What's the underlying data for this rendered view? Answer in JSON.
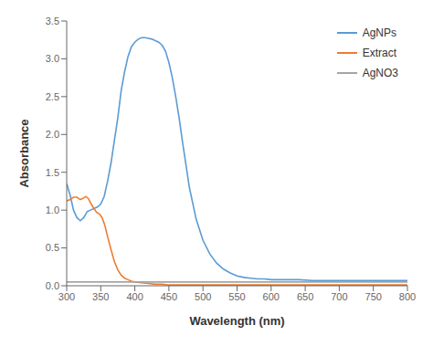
{
  "chart_data": {
    "type": "line",
    "xlabel": "Wavelength (nm)",
    "ylabel": "Absorbance",
    "xlim": [
      300,
      800
    ],
    "ylim": [
      0,
      3.5
    ],
    "xticks": [
      300,
      350,
      400,
      450,
      500,
      550,
      600,
      650,
      700,
      750,
      800
    ],
    "yticks": [
      {
        "value": 0,
        "label": "0.0"
      },
      0.5,
      {
        "value": 1.0,
        "label": "1.0"
      },
      1.5,
      {
        "value": 2.0,
        "label": "2.0"
      },
      2.5,
      {
        "value": 3.0,
        "label": "3.0"
      },
      3.5
    ],
    "grid": false,
    "legend": "upper right",
    "series": [
      {
        "name": "AgNPs",
        "color": "#5B9BD5",
        "x": [
          300,
          305,
          310,
          315,
          320,
          325,
          330,
          335,
          340,
          345,
          350,
          355,
          360,
          365,
          370,
          375,
          380,
          385,
          390,
          395,
          400,
          405,
          410,
          415,
          420,
          425,
          430,
          435,
          440,
          445,
          450,
          455,
          460,
          465,
          470,
          475,
          480,
          490,
          500,
          510,
          520,
          530,
          540,
          550,
          560,
          570,
          580,
          590,
          600,
          620,
          640,
          660,
          680,
          700,
          720,
          740,
          760,
          780,
          800
        ],
        "values": [
          1.35,
          1.2,
          1.0,
          0.9,
          0.86,
          0.9,
          0.98,
          1.0,
          1.02,
          1.04,
          1.08,
          1.18,
          1.38,
          1.62,
          1.92,
          2.22,
          2.58,
          2.83,
          3.03,
          3.16,
          3.22,
          3.26,
          3.28,
          3.28,
          3.27,
          3.26,
          3.24,
          3.22,
          3.18,
          3.1,
          2.95,
          2.75,
          2.5,
          2.22,
          1.9,
          1.6,
          1.3,
          0.88,
          0.6,
          0.42,
          0.3,
          0.22,
          0.17,
          0.13,
          0.11,
          0.1,
          0.09,
          0.09,
          0.08,
          0.08,
          0.08,
          0.07,
          0.07,
          0.07,
          0.07,
          0.07,
          0.07,
          0.07,
          0.07
        ]
      },
      {
        "name": "Extract",
        "color": "#ED7D31",
        "x": [
          300,
          305,
          310,
          315,
          320,
          325,
          328,
          332,
          336,
          340,
          344,
          348,
          352,
          356,
          360,
          365,
          370,
          375,
          380,
          385,
          390,
          395,
          400,
          410,
          420,
          430,
          440,
          450,
          460,
          480,
          500,
          550,
          600,
          700,
          800
        ],
        "values": [
          1.12,
          1.14,
          1.17,
          1.17,
          1.14,
          1.16,
          1.18,
          1.15,
          1.08,
          1.02,
          0.97,
          0.95,
          0.9,
          0.8,
          0.65,
          0.48,
          0.32,
          0.21,
          0.14,
          0.1,
          0.08,
          0.06,
          0.05,
          0.04,
          0.03,
          0.02,
          0.02,
          0.01,
          0.01,
          0.01,
          0.01,
          0.01,
          0.01,
          0.01,
          0.01
        ]
      },
      {
        "name": "AgNO3",
        "color": "#A5A5A5",
        "x": [
          300,
          800
        ],
        "values": [
          0.05,
          0.05
        ]
      }
    ]
  }
}
